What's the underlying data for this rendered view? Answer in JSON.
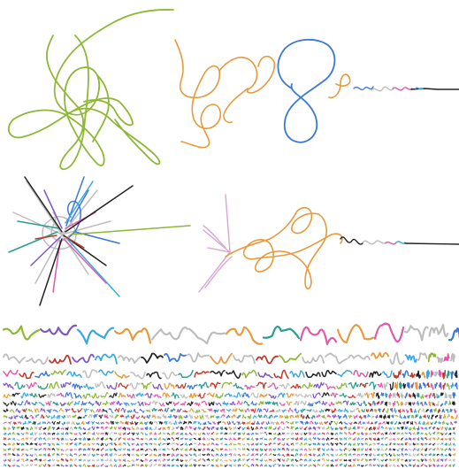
{
  "palette": {
    "green": "#8db834",
    "orange": "#e69a3b",
    "blue": "#3c78d8",
    "gray": "#bdbdbd",
    "pink": "#e05aa9",
    "black": "#222222",
    "red": "#c0392b",
    "teal": "#2a9d8f",
    "purple": "#7e57c2",
    "lightblue": "#3aa7e0",
    "lilac": "#d7a6d1",
    "brown": "#8d6e63"
  },
  "panels": [
    {
      "name": "single-green-tangle",
      "colors": [
        "green"
      ]
    },
    {
      "name": "orange-blue-loop-trail",
      "colors": [
        "orange",
        "blue",
        "gray",
        "pink",
        "black"
      ]
    },
    {
      "name": "multicolor-starburst",
      "colors": [
        "gray",
        "blue",
        "pink",
        "teal",
        "purple",
        "black",
        "lightblue",
        "green",
        "red",
        "brown"
      ]
    },
    {
      "name": "lilac-orange-heart-trail",
      "colors": [
        "lilac",
        "orange",
        "black",
        "gray",
        "pink"
      ]
    },
    {
      "name": "squiggle-rows-grid",
      "colors": [
        "gray",
        "black",
        "pink",
        "blue",
        "orange",
        "green",
        "purple",
        "red",
        "teal",
        "lightblue"
      ]
    }
  ]
}
